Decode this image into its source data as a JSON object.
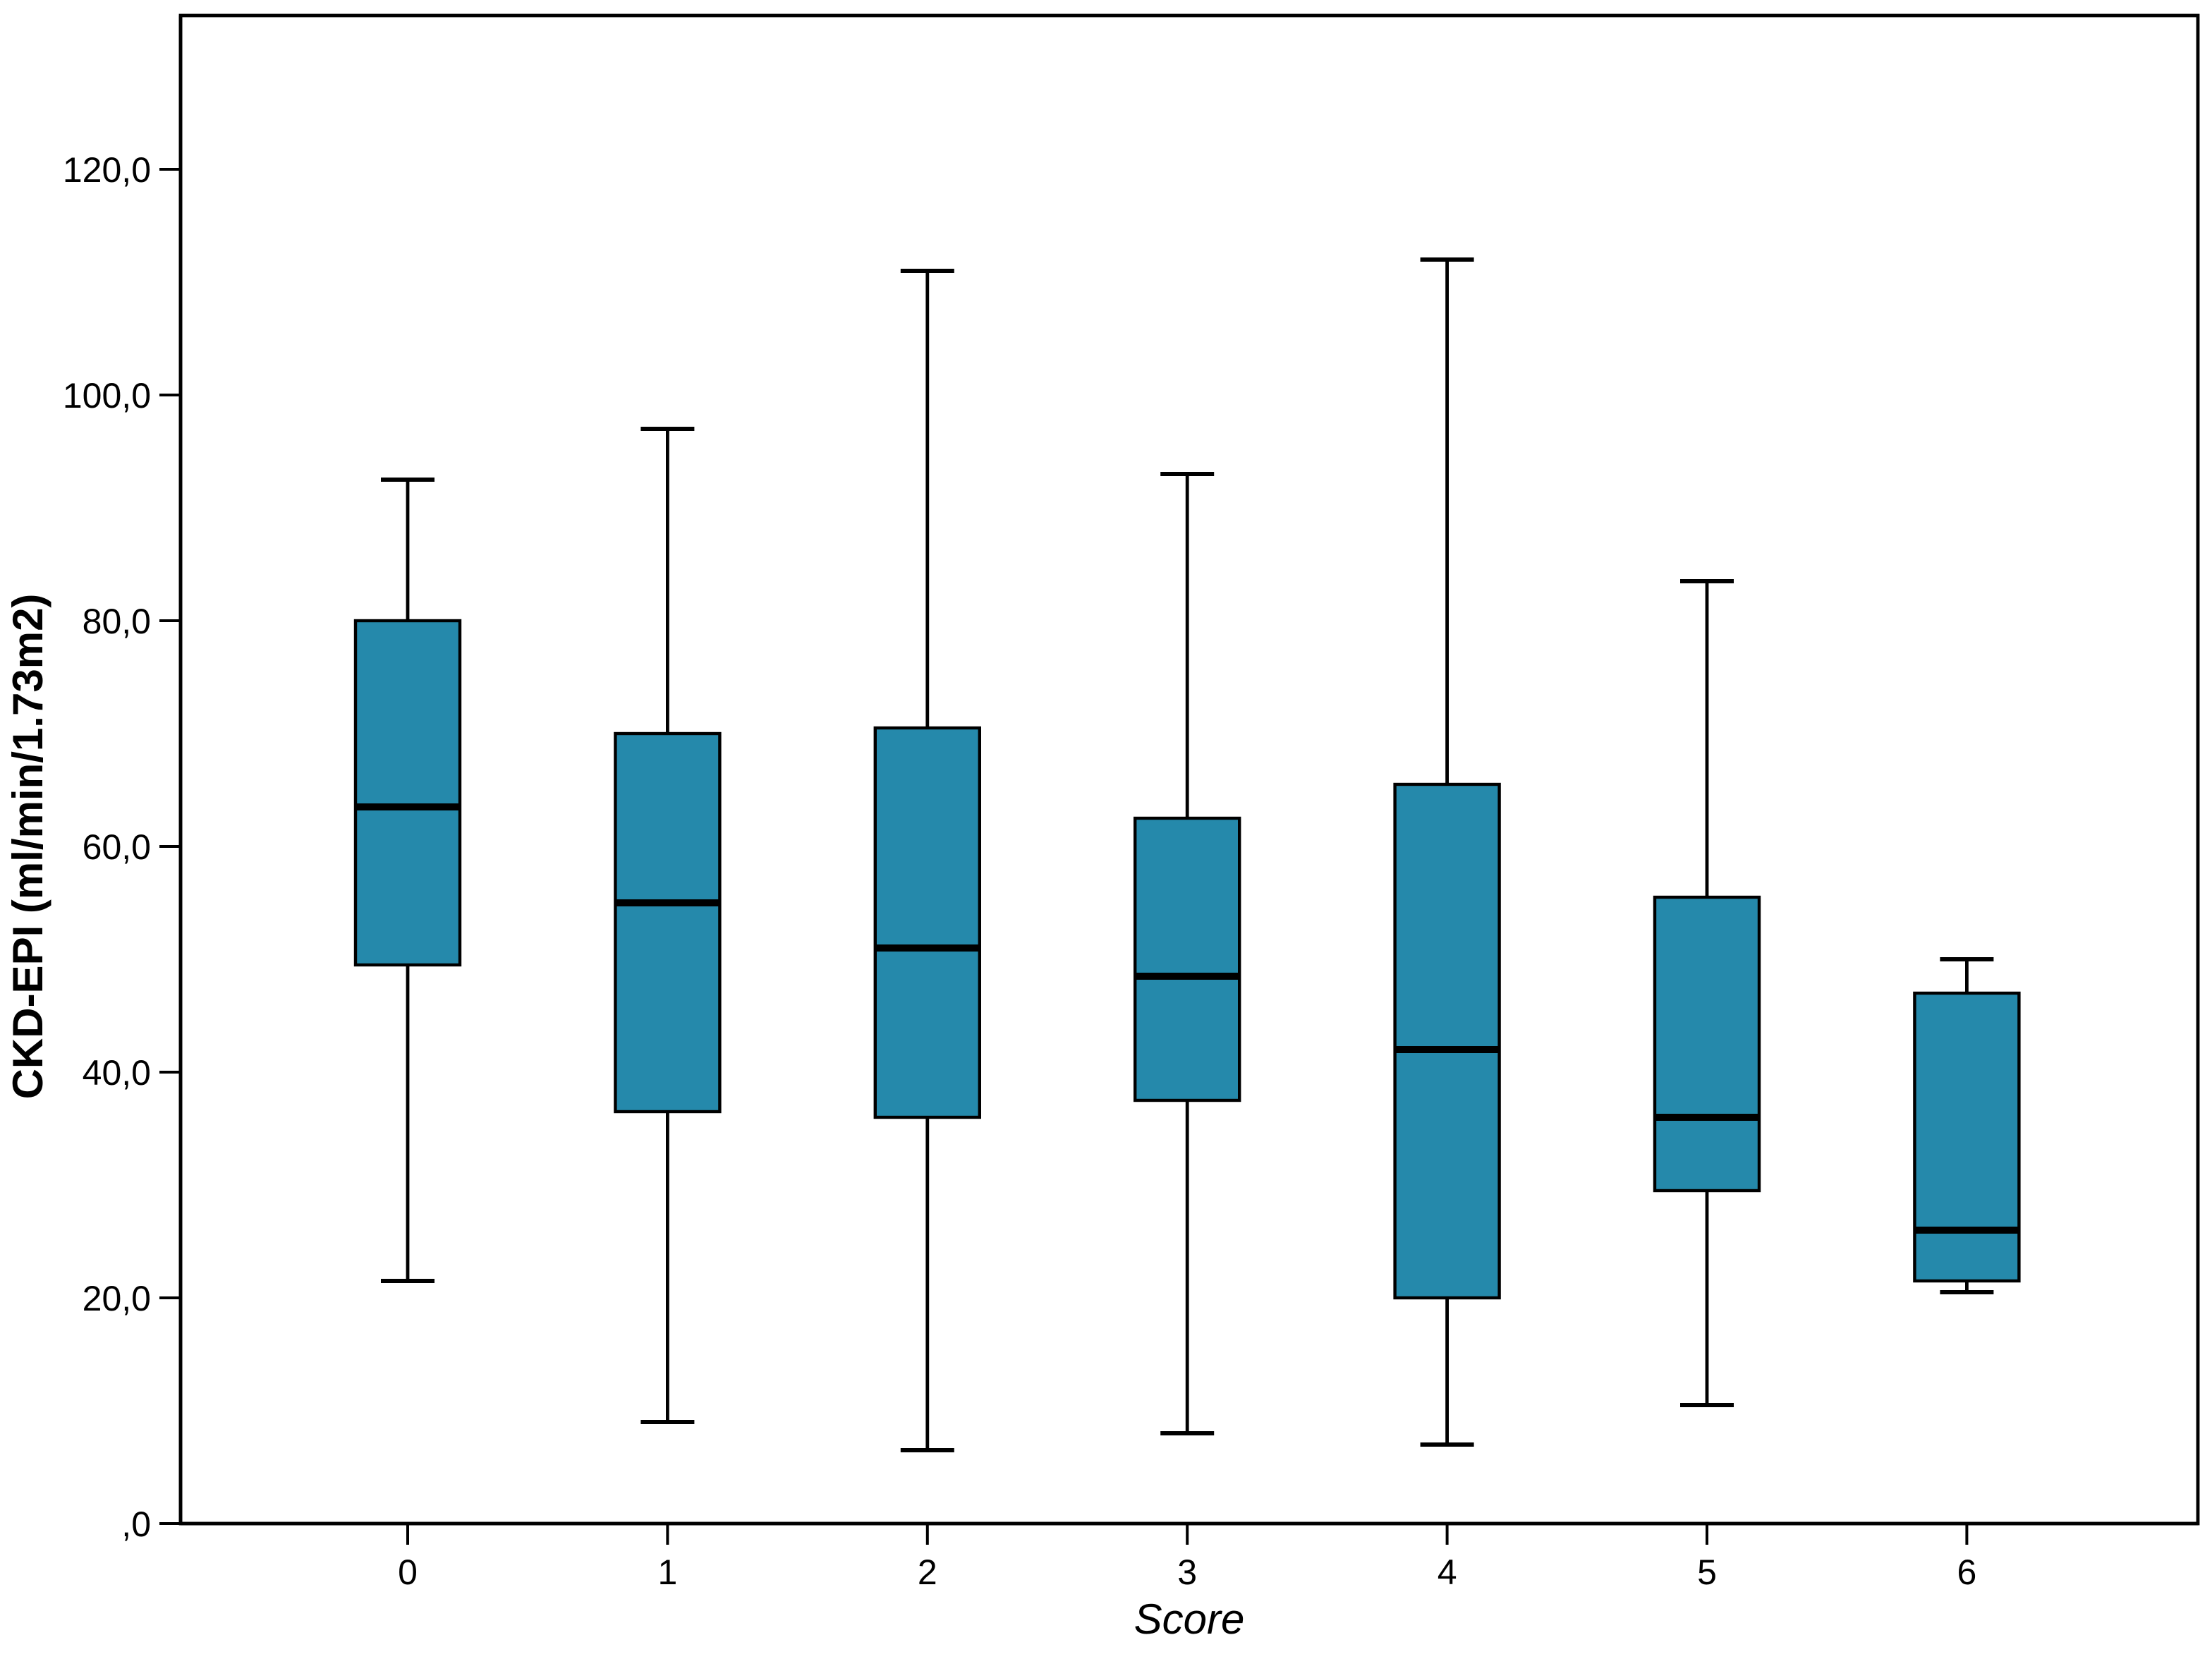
{
  "chart_data": {
    "type": "box",
    "title": "",
    "xlabel": "Score",
    "ylabel": "CKD-EPI (ml/min/1.73m2)",
    "categories": [
      "0",
      "1",
      "2",
      "3",
      "4",
      "5",
      "6"
    ],
    "ytick_labels": [
      "120,0",
      "100,0",
      "80,0",
      "60,0",
      "40,0",
      "20,0",
      ",0"
    ],
    "ytick_values": [
      120,
      100,
      80,
      60,
      40,
      20,
      0
    ],
    "ylim": [
      0,
      133.6
    ],
    "grid": false,
    "legend": "none",
    "decimal_separator": ",",
    "series": [
      {
        "category": "0",
        "whisker_low": 21.5,
        "q1": 49.5,
        "median": 63.5,
        "q3": 80.0,
        "whisker_high": 92.5
      },
      {
        "category": "1",
        "whisker_low": 9.0,
        "q1": 36.5,
        "median": 55.0,
        "q3": 70.0,
        "whisker_high": 97.0
      },
      {
        "category": "2",
        "whisker_low": 6.5,
        "q1": 36.0,
        "median": 51.0,
        "q3": 70.5,
        "whisker_high": 111.0
      },
      {
        "category": "3",
        "whisker_low": 8.0,
        "q1": 37.5,
        "median": 48.5,
        "q3": 62.5,
        "whisker_high": 93.0
      },
      {
        "category": "4",
        "whisker_low": 7.0,
        "q1": 20.0,
        "median": 42.0,
        "q3": 65.5,
        "whisker_high": 112.0
      },
      {
        "category": "5",
        "whisker_low": 10.5,
        "q1": 29.5,
        "median": 36.0,
        "q3": 55.5,
        "whisker_high": 83.5
      },
      {
        "category": "6",
        "whisker_low": 20.5,
        "q1": 21.5,
        "median": 26.0,
        "q3": 47.0,
        "whisker_high": 50.0
      }
    ],
    "colors": {
      "box_fill": "#2589ab",
      "line": "#000000",
      "background": "#ffffff"
    }
  }
}
